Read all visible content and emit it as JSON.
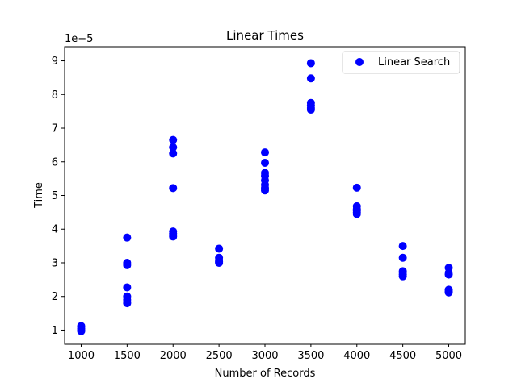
{
  "chart_data": {
    "type": "scatter",
    "title": "Linear Times",
    "xlabel": "Number of Records",
    "ylabel": "Time",
    "y_offset_label": "1e−5",
    "xlim": [
      820,
      5180
    ],
    "ylim": [
      0.58,
      9.42
    ],
    "xticks": [
      1000,
      1500,
      2000,
      2500,
      3000,
      3500,
      4000,
      4500,
      5000
    ],
    "yticks": [
      1,
      2,
      3,
      4,
      5,
      6,
      7,
      8,
      9
    ],
    "grid": false,
    "legend_position": "top-right",
    "series": [
      {
        "name": "Linear Search",
        "color": "#0000ff",
        "points": [
          [
            1000,
            1.12
          ],
          [
            1000,
            1.05
          ],
          [
            1000,
            1.0
          ],
          [
            1000,
            0.97
          ],
          [
            1500,
            3.75
          ],
          [
            1500,
            3.0
          ],
          [
            1500,
            2.93
          ],
          [
            1500,
            2.27
          ],
          [
            1500,
            2.0
          ],
          [
            1500,
            1.9
          ],
          [
            1500,
            1.83
          ],
          [
            1500,
            1.8
          ],
          [
            2000,
            6.65
          ],
          [
            2000,
            6.43
          ],
          [
            2000,
            6.25
          ],
          [
            2000,
            5.22
          ],
          [
            2000,
            3.93
          ],
          [
            2000,
            3.87
          ],
          [
            2000,
            3.82
          ],
          [
            2000,
            3.78
          ],
          [
            2500,
            3.42
          ],
          [
            2500,
            3.15
          ],
          [
            2500,
            3.08
          ],
          [
            2500,
            3.03
          ],
          [
            2500,
            3.0
          ],
          [
            3000,
            6.28
          ],
          [
            3000,
            5.97
          ],
          [
            3000,
            5.67
          ],
          [
            3000,
            5.58
          ],
          [
            3000,
            5.45
          ],
          [
            3000,
            5.32
          ],
          [
            3000,
            5.22
          ],
          [
            3000,
            5.15
          ],
          [
            3500,
            8.93
          ],
          [
            3500,
            8.48
          ],
          [
            3500,
            7.75
          ],
          [
            3500,
            7.68
          ],
          [
            3500,
            7.6
          ],
          [
            3500,
            7.55
          ],
          [
            4000,
            5.23
          ],
          [
            4000,
            4.68
          ],
          [
            4000,
            4.6
          ],
          [
            4000,
            4.55
          ],
          [
            4000,
            4.5
          ],
          [
            4000,
            4.45
          ],
          [
            4500,
            3.5
          ],
          [
            4500,
            3.15
          ],
          [
            4500,
            2.75
          ],
          [
            4500,
            2.7
          ],
          [
            4500,
            2.65
          ],
          [
            4500,
            2.6
          ],
          [
            5000,
            2.85
          ],
          [
            5000,
            2.7
          ],
          [
            5000,
            2.65
          ],
          [
            5000,
            2.2
          ],
          [
            5000,
            2.15
          ],
          [
            5000,
            2.12
          ]
        ]
      }
    ]
  }
}
